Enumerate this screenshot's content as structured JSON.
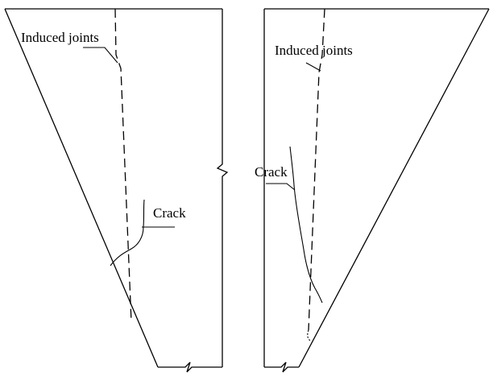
{
  "labels": {
    "left_induced_joints": "Induced joints",
    "left_crack": "Crack",
    "right_induced_joints": "Induced joints",
    "right_crack": "Crack"
  }
}
